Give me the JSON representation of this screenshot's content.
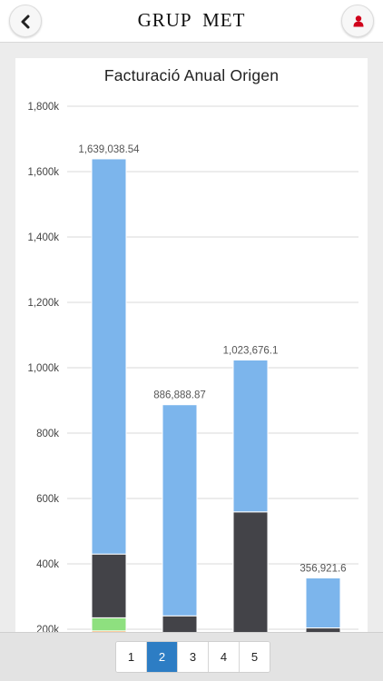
{
  "header": {
    "logo_text": "GRUP MET",
    "back_icon": "chevron-left-icon",
    "user_icon": "user-icon",
    "user_icon_color": "#d0021b"
  },
  "pagination": {
    "pages": [
      "1",
      "2",
      "3",
      "4",
      "5"
    ],
    "active": "2",
    "active_color": "#2d7dc4"
  },
  "chart_data": {
    "type": "bar",
    "stacked": true,
    "title": "Facturació Anual Origen",
    "xlabel": "",
    "ylabel": "",
    "ylim": [
      0,
      1800000
    ],
    "yticks": [
      200000,
      400000,
      600000,
      800000,
      1000000,
      1200000,
      1400000,
      1600000,
      1800000
    ],
    "ytick_labels": [
      "200k",
      "400k",
      "600k",
      "800k",
      "1,000k",
      "1,200k",
      "1,400k",
      "1,600k",
      "1,800k"
    ],
    "grid": true,
    "categories": [
      "",
      "",
      "",
      ""
    ],
    "totals": [
      1639038.54,
      886888.87,
      1023676.1,
      356921.6
    ],
    "total_labels": [
      "1,639,038.54",
      "886,888.87",
      "1,023,676.1",
      "356,921.6"
    ],
    "series": [
      {
        "color": "#e3d55a",
        "values": [
          90000,
          10000,
          0,
          0
        ]
      },
      {
        "color": "#e9527f",
        "values": [
          25000,
          8000,
          4000,
          4000
        ]
      },
      {
        "color": "#7b7fe6",
        "values": [
          45000,
          30000,
          25000,
          4000
        ]
      },
      {
        "color": "#f7a55a",
        "values": [
          35000,
          60000,
          80000,
          26000
        ]
      },
      {
        "color": "#8ee07f",
        "values": [
          40000,
          33000,
          15000,
          0
        ]
      },
      {
        "color": "#434348",
        "values": [
          195000,
          100000,
          435000,
          170000
        ]
      },
      {
        "color": "#7cb5ec",
        "values": [
          1209038.54,
          645888.87,
          464676.1,
          152921.6
        ]
      }
    ]
  }
}
